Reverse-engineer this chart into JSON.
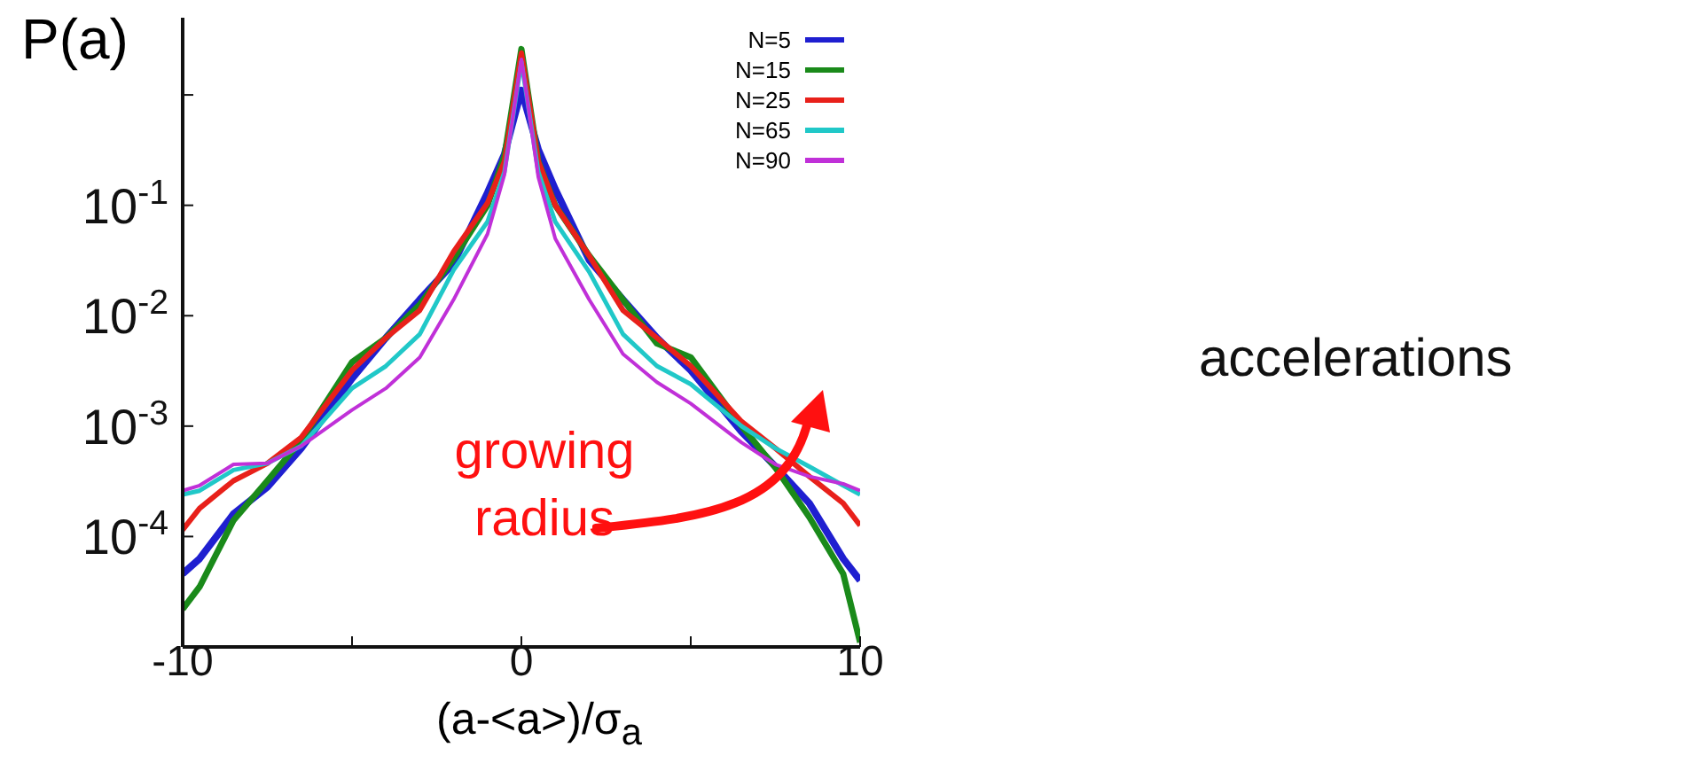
{
  "chart_data": {
    "type": "line",
    "ylabel": "P(a)",
    "xlabel": "(a-<a>)/σ$_{a}$",
    "log": "y",
    "grid": false,
    "legend": "top right",
    "annotations": [
      "growing radius",
      "accelerations"
    ],
    "xlim": [
      -10,
      10
    ],
    "xticks": [
      -10,
      {
        "value": -5,
        "label": null
      },
      0,
      {
        "value": 5,
        "label": null
      },
      10
    ],
    "ylim": [
      1e-05,
      5
    ],
    "yticks": [
      {
        "value": 0.0001,
        "label": "10$^{-4}$"
      },
      {
        "value": 0.001,
        "label": "10$^{-3}$"
      },
      {
        "value": 0.01,
        "label": "10$^{-2}$"
      },
      {
        "value": 0.1,
        "label": "10$^{-1}$"
      },
      {
        "value": 1,
        "label": null
      }
    ],
    "x": [
      -10,
      -9.5,
      -8.5,
      -7.5,
      -6.5,
      -5,
      -4,
      -3,
      -2,
      -1,
      -0.5,
      0,
      0.5,
      1,
      2,
      3,
      4,
      5,
      6.5,
      7.5,
      8.5,
      9.5,
      10
    ],
    "series": [
      {
        "name": "N=5",
        "color": "#1f1fd0",
        "values": [
          4.6e-05,
          6.3e-05,
          0.00016,
          0.00028,
          0.00063,
          0.0027,
          0.0063,
          0.014,
          0.03,
          0.13,
          0.29,
          1.1,
          0.32,
          0.14,
          0.032,
          0.014,
          0.0063,
          0.0032,
          0.00089,
          0.00043,
          0.0002,
          6.3e-05,
          4e-05
        ]
      },
      {
        "name": "N=15",
        "color": "#1a8a1a",
        "values": [
          2.2e-05,
          3.5e-05,
          0.00014,
          0.00032,
          0.00074,
          0.0038,
          0.0063,
          0.0126,
          0.033,
          0.1,
          0.28,
          2.6,
          0.25,
          0.1,
          0.035,
          0.014,
          0.0056,
          0.0042,
          0.001,
          0.00042,
          0.00015,
          4.6e-05,
          1.1e-05
        ]
      },
      {
        "name": "N=25",
        "color": "#e8201a",
        "values": [
          0.000115,
          0.00018,
          0.00032,
          0.00046,
          0.00079,
          0.0032,
          0.0063,
          0.0112,
          0.038,
          0.105,
          0.25,
          2.4,
          0.25,
          0.1,
          0.035,
          0.0112,
          0.0063,
          0.0035,
          0.0011,
          0.00063,
          0.00035,
          0.0002,
          0.000126
        ]
      },
      {
        "name": "N=65",
        "color": "#20c8c8",
        "values": [
          0.00024,
          0.00026,
          0.0004,
          0.00046,
          0.00066,
          0.0022,
          0.0035,
          0.0068,
          0.026,
          0.071,
          0.2,
          2.0,
          0.2,
          0.071,
          0.025,
          0.0068,
          0.0035,
          0.0024,
          0.001,
          0.00063,
          0.00043,
          0.00029,
          0.00024
        ]
      },
      {
        "name": "N=90",
        "color": "#c030d8",
        "values": [
          0.00026,
          0.00029,
          0.00045,
          0.00046,
          0.00066,
          0.0014,
          0.0022,
          0.0042,
          0.014,
          0.055,
          0.19,
          2.1,
          0.18,
          0.05,
          0.014,
          0.0045,
          0.0025,
          0.0016,
          0.00071,
          0.00045,
          0.00035,
          0.0003,
          0.00026
        ]
      }
    ]
  }
}
